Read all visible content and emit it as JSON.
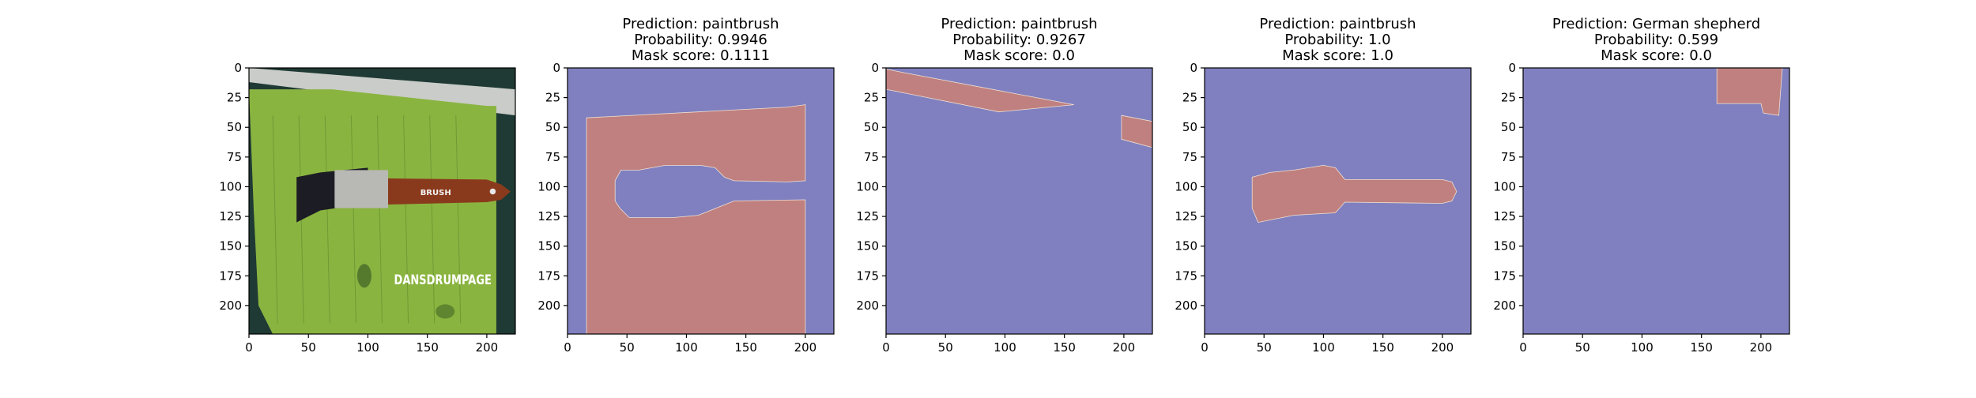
{
  "figure": {
    "background": "#ffffff",
    "mask_background_color": "#8080c0",
    "mask_foreground_color": "#c08080"
  },
  "chart_data": [
    {
      "type": "image",
      "panel": "input-image",
      "title_lines": [],
      "xlim": [
        0,
        224
      ],
      "ylim": [
        224,
        0
      ],
      "x_ticks": [
        0,
        50,
        100,
        150,
        200
      ],
      "y_ticks": [
        0,
        25,
        50,
        75,
        100,
        125,
        150,
        175,
        200
      ],
      "image_text": "DANSDRUMPAGE",
      "brush_label": "BRUSH"
    },
    {
      "type": "mask",
      "panel": "mask-1",
      "title_lines": [
        "Prediction: paintbrush",
        "Probability: 0.9946",
        "Mask score: 0.1111"
      ],
      "prediction": "paintbrush",
      "probability": 0.9946,
      "mask_score": 0.1111,
      "xlim": [
        0,
        224
      ],
      "ylim": [
        224,
        0
      ],
      "x_ticks": [
        0,
        50,
        100,
        150,
        200
      ],
      "y_ticks": [
        0,
        25,
        50,
        75,
        100,
        125,
        150,
        175,
        200
      ],
      "regions": [
        [
          [
            16,
            42
          ],
          [
            185,
            33
          ],
          [
            200,
            31
          ],
          [
            200,
            95
          ],
          [
            185,
            96
          ],
          [
            140,
            95
          ],
          [
            132,
            92
          ],
          [
            124,
            84
          ],
          [
            112,
            82
          ],
          [
            82,
            82
          ],
          [
            60,
            86
          ],
          [
            45,
            86
          ],
          [
            40,
            95
          ],
          [
            40,
            112
          ],
          [
            44,
            118
          ],
          [
            52,
            126
          ],
          [
            88,
            126
          ],
          [
            110,
            124
          ],
          [
            140,
            112
          ],
          [
            200,
            111
          ],
          [
            200,
            224
          ],
          [
            16,
            224
          ]
        ]
      ]
    },
    {
      "type": "mask",
      "panel": "mask-2",
      "title_lines": [
        "Prediction: paintbrush",
        "Probability: 0.9267",
        "Mask score: 0.0"
      ],
      "prediction": "paintbrush",
      "probability": 0.9267,
      "mask_score": 0.0,
      "xlim": [
        0,
        224
      ],
      "ylim": [
        224,
        0
      ],
      "x_ticks": [
        0,
        50,
        100,
        150,
        200
      ],
      "y_ticks": [
        0,
        25,
        50,
        75,
        100,
        125,
        150,
        175,
        200
      ],
      "regions": [
        [
          [
            0,
            1
          ],
          [
            15,
            4
          ],
          [
            158,
            31
          ],
          [
            95,
            37
          ],
          [
            0,
            18
          ]
        ],
        [
          [
            198,
            40
          ],
          [
            224,
            45
          ],
          [
            224,
            67
          ],
          [
            198,
            60
          ]
        ]
      ]
    },
    {
      "type": "mask",
      "panel": "mask-3",
      "title_lines": [
        "Prediction: paintbrush",
        "Probability: 1.0",
        "Mask score: 1.0"
      ],
      "prediction": "paintbrush",
      "probability": 1.0,
      "mask_score": 1.0,
      "xlim": [
        0,
        224
      ],
      "ylim": [
        224,
        0
      ],
      "x_ticks": [
        0,
        50,
        100,
        150,
        200
      ],
      "y_ticks": [
        0,
        25,
        50,
        75,
        100,
        125,
        150,
        175,
        200
      ],
      "regions": [
        [
          [
            40,
            92
          ],
          [
            55,
            88
          ],
          [
            75,
            86
          ],
          [
            100,
            82
          ],
          [
            110,
            84
          ],
          [
            118,
            94
          ],
          [
            200,
            94
          ],
          [
            208,
            96
          ],
          [
            212,
            104
          ],
          [
            208,
            112
          ],
          [
            200,
            114
          ],
          [
            118,
            113
          ],
          [
            110,
            122
          ],
          [
            75,
            124
          ],
          [
            45,
            130
          ],
          [
            40,
            118
          ]
        ]
      ]
    },
    {
      "type": "mask",
      "panel": "mask-4",
      "title_lines": [
        "Prediction: German shepherd",
        "Probability: 0.599",
        "Mask score: 0.0"
      ],
      "prediction": "German shepherd",
      "probability": 0.599,
      "mask_score": 0.0,
      "xlim": [
        0,
        224
      ],
      "ylim": [
        224,
        0
      ],
      "x_ticks": [
        0,
        50,
        100,
        150,
        200
      ],
      "y_ticks": [
        0,
        25,
        50,
        75,
        100,
        125,
        150,
        175,
        200
      ],
      "regions": [
        [
          [
            163,
            0
          ],
          [
            218,
            0
          ],
          [
            215,
            40
          ],
          [
            202,
            38
          ],
          [
            200,
            30
          ],
          [
            163,
            30
          ]
        ]
      ]
    }
  ]
}
